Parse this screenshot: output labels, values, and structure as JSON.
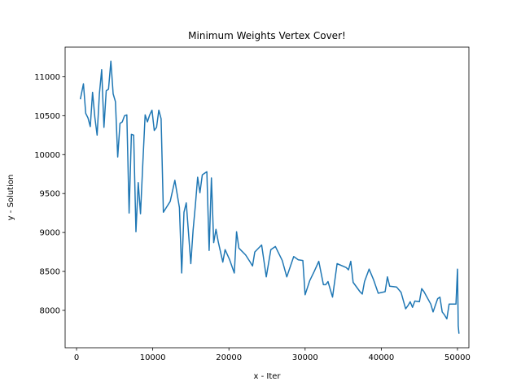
{
  "chart_data": {
    "type": "line",
    "title": "Minimum Weights Vertex Cover!",
    "xlabel": "x - Iter",
    "ylabel": "y - Solution",
    "xlim": [
      -1500,
      51500
    ],
    "ylim": [
      7520,
      11380
    ],
    "grid": false,
    "xticks": [
      0,
      10000,
      20000,
      30000,
      40000,
      50000
    ],
    "yticks": [
      8000,
      8500,
      9000,
      9500,
      10000,
      10500,
      11000
    ],
    "line_color": "#1f77b4",
    "series": [
      {
        "points": [
          [
            500,
            10710
          ],
          [
            900,
            10910
          ],
          [
            1200,
            10530
          ],
          [
            1500,
            10470
          ],
          [
            1800,
            10360
          ],
          [
            2100,
            10800
          ],
          [
            2400,
            10480
          ],
          [
            2700,
            10250
          ],
          [
            3000,
            10780
          ],
          [
            3300,
            11090
          ],
          [
            3600,
            10350
          ],
          [
            3900,
            10820
          ],
          [
            4200,
            10840
          ],
          [
            4500,
            11200
          ],
          [
            4800,
            10780
          ],
          [
            5100,
            10680
          ],
          [
            5400,
            9970
          ],
          [
            5700,
            10400
          ],
          [
            6000,
            10420
          ],
          [
            6300,
            10500
          ],
          [
            6600,
            10510
          ],
          [
            6900,
            9250
          ],
          [
            7200,
            10260
          ],
          [
            7500,
            10250
          ],
          [
            7800,
            9010
          ],
          [
            8100,
            9640
          ],
          [
            8400,
            9240
          ],
          [
            8700,
            9900
          ],
          [
            9000,
            10510
          ],
          [
            9300,
            10420
          ],
          [
            9600,
            10510
          ],
          [
            9900,
            10570
          ],
          [
            10200,
            10310
          ],
          [
            10500,
            10350
          ],
          [
            10800,
            10570
          ],
          [
            11100,
            10460
          ],
          [
            11400,
            9260
          ],
          [
            12300,
            9400
          ],
          [
            12900,
            9670
          ],
          [
            13500,
            9320
          ],
          [
            13800,
            8480
          ],
          [
            14100,
            9260
          ],
          [
            14400,
            9380
          ],
          [
            15000,
            8600
          ],
          [
            15300,
            9030
          ],
          [
            15600,
            9350
          ],
          [
            15900,
            9710
          ],
          [
            16200,
            9510
          ],
          [
            16500,
            9740
          ],
          [
            16800,
            9760
          ],
          [
            17100,
            9780
          ],
          [
            17400,
            8770
          ],
          [
            17700,
            9700
          ],
          [
            18000,
            8870
          ],
          [
            18300,
            9040
          ],
          [
            18600,
            8880
          ],
          [
            19200,
            8620
          ],
          [
            19500,
            8780
          ],
          [
            20100,
            8650
          ],
          [
            20700,
            8480
          ],
          [
            21000,
            9010
          ],
          [
            21300,
            8800
          ],
          [
            22200,
            8710
          ],
          [
            22800,
            8620
          ],
          [
            23100,
            8570
          ],
          [
            23400,
            8750
          ],
          [
            24300,
            8840
          ],
          [
            24900,
            8430
          ],
          [
            25500,
            8780
          ],
          [
            26100,
            8820
          ],
          [
            27000,
            8640
          ],
          [
            27600,
            8430
          ],
          [
            28500,
            8690
          ],
          [
            29100,
            8650
          ],
          [
            29700,
            8640
          ],
          [
            30000,
            8200
          ],
          [
            30600,
            8380
          ],
          [
            31200,
            8500
          ],
          [
            31800,
            8630
          ],
          [
            32400,
            8330
          ],
          [
            32700,
            8330
          ],
          [
            33000,
            8370
          ],
          [
            33600,
            8170
          ],
          [
            34200,
            8600
          ],
          [
            35400,
            8550
          ],
          [
            35700,
            8520
          ],
          [
            36000,
            8630
          ],
          [
            36300,
            8360
          ],
          [
            37200,
            8240
          ],
          [
            37500,
            8210
          ],
          [
            37800,
            8370
          ],
          [
            38400,
            8530
          ],
          [
            39000,
            8390
          ],
          [
            39600,
            8220
          ],
          [
            40500,
            8240
          ],
          [
            40800,
            8430
          ],
          [
            41100,
            8310
          ],
          [
            42000,
            8300
          ],
          [
            42600,
            8230
          ],
          [
            43200,
            8020
          ],
          [
            43500,
            8060
          ],
          [
            43800,
            8110
          ],
          [
            44100,
            8040
          ],
          [
            44400,
            8120
          ],
          [
            45000,
            8110
          ],
          [
            45300,
            8280
          ],
          [
            45600,
            8240
          ],
          [
            46500,
            8080
          ],
          [
            46800,
            7980
          ],
          [
            47400,
            8150
          ],
          [
            47700,
            8170
          ],
          [
            48000,
            7980
          ],
          [
            48300,
            7940
          ],
          [
            48600,
            7890
          ],
          [
            48900,
            8080
          ],
          [
            49200,
            8080
          ],
          [
            49800,
            8080
          ],
          [
            50000,
            8530
          ],
          [
            50100,
            7800
          ],
          [
            50200,
            7700
          ]
        ]
      }
    ]
  }
}
